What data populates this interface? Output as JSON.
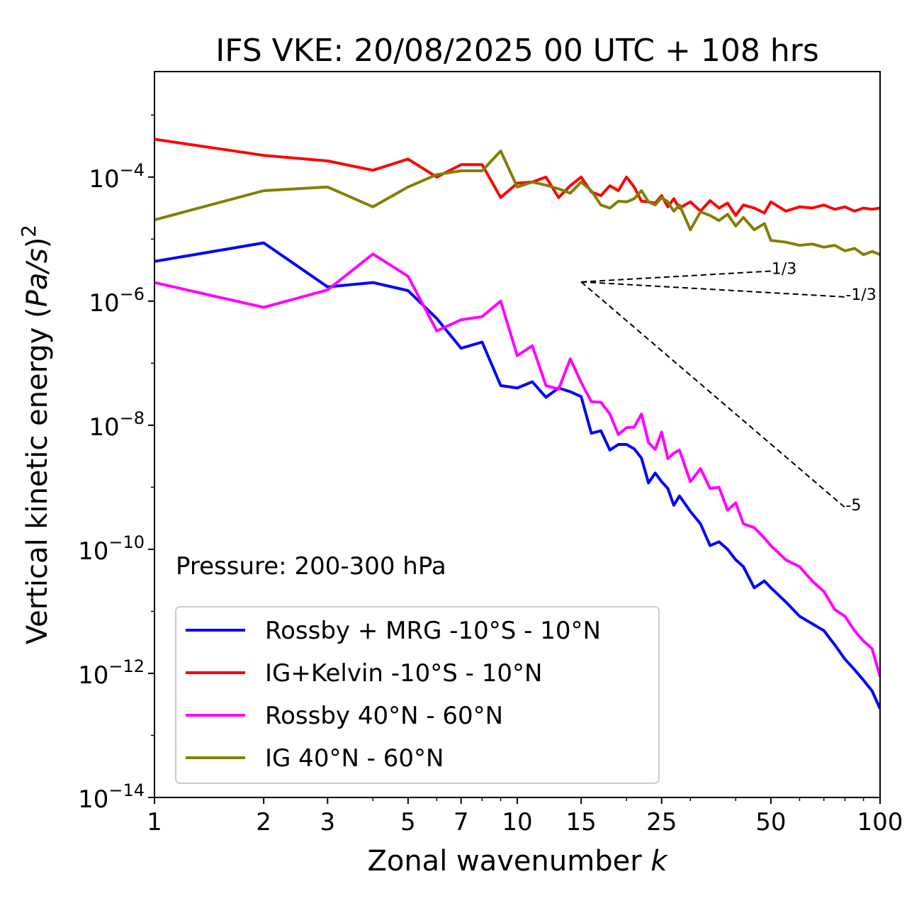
{
  "chart_data": {
    "type": "line",
    "title": "IFS VKE: 20/08/2025 00 UTC + 108 hrs",
    "xlabel": "Zonal wavenumber k",
    "xlabel_main": "Zonal wavenumber ",
    "xlabel_var": "k",
    "ylabel_main": "Vertical kinetic energy (",
    "ylabel_var": "Pa/s",
    "ylabel_end": ")",
    "ylabel_sup": "2",
    "xscale": "log",
    "yscale": "log",
    "xlim": [
      1,
      100
    ],
    "ylim_log10": [
      -14,
      -2.3
    ],
    "xticks": [
      1,
      2,
      3,
      5,
      7,
      10,
      15,
      25,
      50,
      100
    ],
    "xtick_labels": [
      "1",
      "2",
      "3",
      "5",
      "7",
      "10",
      "15",
      "25",
      "50",
      "100"
    ],
    "ytick_exponents": [
      -4,
      -6,
      -8,
      -10,
      -12,
      -14
    ],
    "ytick_labels": [
      "10",
      "10",
      "10",
      "10",
      "10",
      "10"
    ],
    "ytick_sup": [
      "−4",
      "−6",
      "−8",
      "−10",
      "−12",
      "−14"
    ],
    "annotation": "Pressure: 200-300 hPa",
    "legend_position": "lower-left",
    "x": [
      1,
      2,
      3,
      4,
      5,
      6,
      7,
      8,
      9,
      10,
      11,
      12,
      13,
      14,
      15,
      16,
      17,
      18,
      19,
      20,
      21,
      22,
      23,
      24,
      25,
      26,
      27,
      28,
      30,
      32,
      34,
      36,
      38,
      40,
      42,
      45,
      48,
      50,
      55,
      60,
      65,
      70,
      75,
      80,
      85,
      90,
      95,
      100
    ],
    "series": [
      {
        "name": "Rossby + MRG -10°S - 10°N",
        "color": "#0000ff",
        "log10_values": [
          -5.36,
          -5.06,
          -5.77,
          -5.7,
          -5.83,
          -6.28,
          -6.76,
          -6.66,
          -7.36,
          -7.4,
          -7.3,
          -7.55,
          -7.4,
          -7.46,
          -7.54,
          -8.13,
          -8.09,
          -8.4,
          -8.31,
          -8.31,
          -8.38,
          -8.53,
          -8.93,
          -8.77,
          -8.91,
          -9.02,
          -9.29,
          -9.14,
          -9.39,
          -9.59,
          -9.94,
          -9.88,
          -10.0,
          -10.17,
          -10.28,
          -10.62,
          -10.51,
          -10.62,
          -10.85,
          -11.08,
          -11.2,
          -11.31,
          -11.54,
          -11.77,
          -11.94,
          -12.11,
          -12.28,
          -12.57
        ]
      },
      {
        "name": "IG+Kelvin -10°S - 10°N",
        "color": "#ff0000",
        "log10_values": [
          -3.39,
          -3.65,
          -3.74,
          -3.89,
          -3.71,
          -4.0,
          -3.8,
          -3.8,
          -4.33,
          -4.1,
          -4.08,
          -4.0,
          -4.33,
          -4.14,
          -4.0,
          -4.24,
          -4.3,
          -4.14,
          -4.22,
          -4.0,
          -4.16,
          -4.39,
          -4.4,
          -4.42,
          -4.3,
          -4.48,
          -4.35,
          -4.5,
          -4.4,
          -4.55,
          -4.38,
          -4.5,
          -4.42,
          -4.62,
          -4.45,
          -4.5,
          -4.58,
          -4.4,
          -4.55,
          -4.48,
          -4.5,
          -4.45,
          -4.52,
          -4.48,
          -4.55,
          -4.5,
          -4.52,
          -4.5
        ]
      },
      {
        "name": "Rossby 40°N - 60°N",
        "color": "#ff00ff",
        "log10_values": [
          -5.7,
          -6.1,
          -5.82,
          -5.24,
          -5.6,
          -6.48,
          -6.3,
          -6.25,
          -6.0,
          -6.88,
          -6.72,
          -7.36,
          -7.42,
          -6.93,
          -7.31,
          -7.62,
          -7.63,
          -7.82,
          -8.15,
          -8.04,
          -8.03,
          -7.82,
          -8.28,
          -8.39,
          -8.11,
          -8.54,
          -8.45,
          -8.4,
          -8.91,
          -8.7,
          -9.02,
          -9.0,
          -9.37,
          -9.25,
          -9.59,
          -9.65,
          -9.82,
          -9.94,
          -10.17,
          -10.28,
          -10.51,
          -10.68,
          -10.97,
          -11.08,
          -11.31,
          -11.48,
          -11.6,
          -12.05
        ]
      },
      {
        "name": "IG 40°N - 60°N",
        "color": "#808000",
        "log10_values": [
          -4.69,
          -4.22,
          -4.16,
          -4.48,
          -4.16,
          -3.96,
          -3.9,
          -3.9,
          -3.58,
          -4.16,
          -4.08,
          -4.13,
          -4.19,
          -4.26,
          -4.08,
          -4.22,
          -4.45,
          -4.5,
          -4.39,
          -4.4,
          -4.35,
          -4.22,
          -4.4,
          -4.45,
          -4.33,
          -4.4,
          -4.55,
          -4.45,
          -4.85,
          -4.56,
          -4.62,
          -4.7,
          -4.6,
          -4.79,
          -4.65,
          -4.85,
          -4.75,
          -5.02,
          -5.05,
          -5.1,
          -5.08,
          -5.13,
          -5.1,
          -5.19,
          -5.15,
          -5.25,
          -5.2,
          -5.25
        ]
      }
    ],
    "reference_slopes": [
      {
        "label": "1/3",
        "slope": 0.3333,
        "k_start": 15,
        "k_end": 50,
        "log10_start": -5.69
      },
      {
        "label": "-1/3",
        "slope": -0.3333,
        "k_start": 15,
        "k_end": 80,
        "log10_start": -5.69
      },
      {
        "label": "-5",
        "slope": -5,
        "k_start": 15,
        "k_end": 80,
        "log10_start": -5.69
      }
    ]
  }
}
